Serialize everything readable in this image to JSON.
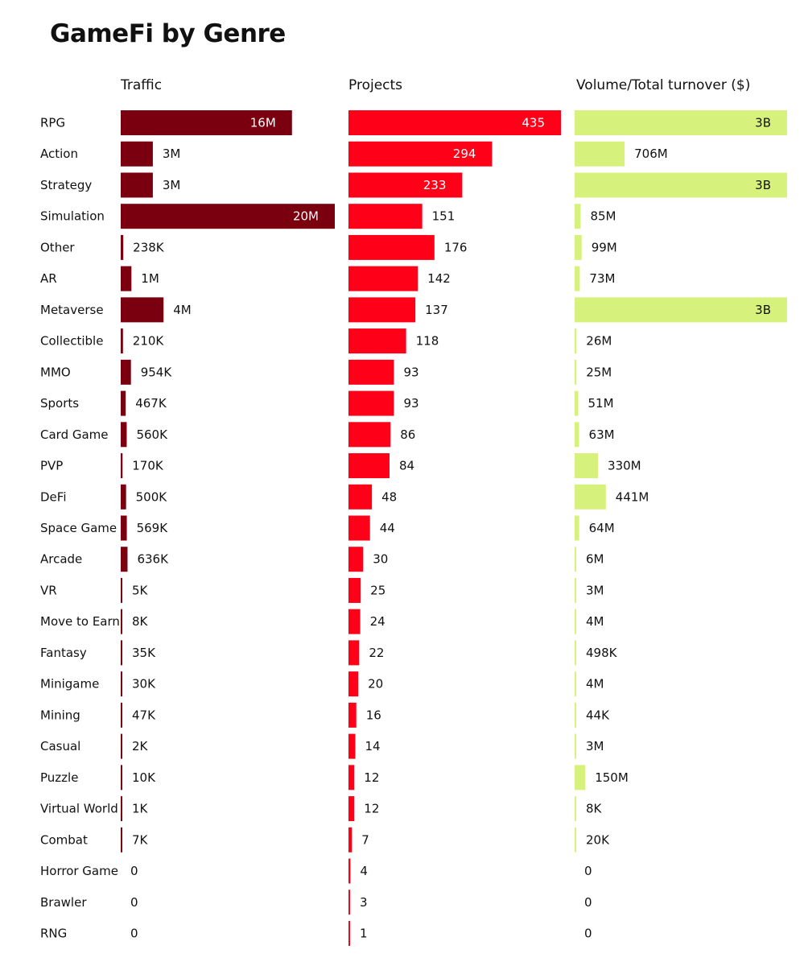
{
  "title": "GameFi by Genre",
  "headers": {
    "traffic": "Traffic",
    "projects": "Projects",
    "volume": "Volume/Total turnover ($)"
  },
  "colors": {
    "traffic": "#7a0010",
    "projects": "#ff0019",
    "volume": "#d7f27c",
    "text": "#111111",
    "inside_text_dark_bar": "#ffffff"
  },
  "chart_data": {
    "type": "bar",
    "orientation": "horizontal",
    "title": "GameFi by Genre",
    "categories": [
      "RPG",
      "Action",
      "Strategy",
      "Simulation",
      "Other",
      "AR",
      "Metaverse",
      "Collectible",
      "MMO",
      "Sports",
      "Card Game",
      "PVP",
      "DeFi",
      "Space Game",
      "Arcade",
      "VR",
      "Move to Earn",
      "Fantasy",
      "Minigame",
      "Mining",
      "Casual",
      "Puzzle",
      "Virtual World",
      "Combat",
      "Horror Game",
      "Brawler",
      "RNG"
    ],
    "series": [
      {
        "name": "Traffic",
        "key": "traffic",
        "values": [
          16000000,
          3000000,
          3000000,
          20000000,
          238000,
          1000000,
          4000000,
          210000,
          954000,
          467000,
          560000,
          170000,
          500000,
          569000,
          636000,
          5000,
          8000,
          35000,
          30000,
          47000,
          2000,
          10000,
          1000,
          7000,
          0,
          0,
          0
        ],
        "labels": [
          "16M",
          "3M",
          "3M",
          "20M",
          "238K",
          "1M",
          "4M",
          "210K",
          "954K",
          "467K",
          "560K",
          "170K",
          "500K",
          "569K",
          "636K",
          "5K",
          "8K",
          "35K",
          "30K",
          "47K",
          "2K",
          "10K",
          "1K",
          "7K",
          "0",
          "0",
          "0"
        ]
      },
      {
        "name": "Projects",
        "key": "projects",
        "values": [
          435,
          294,
          233,
          151,
          176,
          142,
          137,
          118,
          93,
          93,
          86,
          84,
          48,
          44,
          30,
          25,
          24,
          22,
          20,
          16,
          14,
          12,
          12,
          7,
          4,
          3,
          1
        ],
        "labels": [
          "435",
          "294",
          "233",
          "151",
          "176",
          "142",
          "137",
          "118",
          "93",
          "93",
          "86",
          "84",
          "48",
          "44",
          "30",
          "25",
          "24",
          "22",
          "20",
          "16",
          "14",
          "12",
          "12",
          "7",
          "4",
          "3",
          "1"
        ]
      },
      {
        "name": "Volume/Total turnover ($)",
        "key": "volume",
        "values": [
          3000000000,
          706000000,
          3000000000,
          85000000,
          99000000,
          73000000,
          3000000000,
          26000000,
          25000000,
          51000000,
          63000000,
          330000000,
          441000000,
          64000000,
          6000000,
          3000000,
          4000000,
          498000,
          4000000,
          44000,
          3000000,
          150000000,
          8000,
          20000,
          0,
          0,
          0
        ],
        "labels": [
          "3B",
          "706M",
          "3B",
          "85M",
          "99M",
          "73M",
          "3B",
          "26M",
          "25M",
          "51M",
          "63M",
          "330M",
          "441M",
          "64M",
          "6M",
          "3M",
          "4M",
          "498K",
          "4M",
          "44K",
          "3M",
          "150M",
          "8K",
          "20K",
          "0",
          "0",
          "0"
        ]
      }
    ]
  }
}
